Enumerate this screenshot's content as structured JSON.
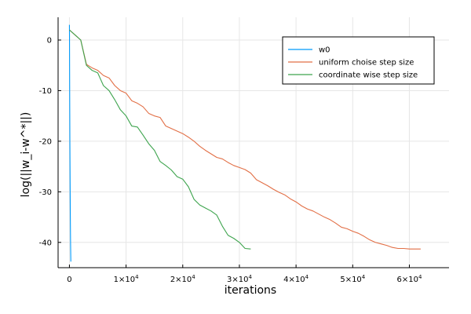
{
  "chart_data": {
    "type": "line",
    "title": "",
    "xlabel": "iterations",
    "ylabel": "log(||w_i-w^*||)",
    "xlim": [
      -2000,
      67000
    ],
    "ylim": [
      -45,
      4.5
    ],
    "grid": true,
    "legend_position": "top-right",
    "x_ticks": [
      {
        "value": 0,
        "base": "0",
        "exp": ""
      },
      {
        "value": 10000,
        "base": "1×10",
        "exp": "4"
      },
      {
        "value": 20000,
        "base": "2×10",
        "exp": "4"
      },
      {
        "value": 30000,
        "base": "3×10",
        "exp": "4"
      },
      {
        "value": 40000,
        "base": "4×10",
        "exp": "4"
      },
      {
        "value": 50000,
        "base": "5×10",
        "exp": "4"
      },
      {
        "value": 60000,
        "base": "6×10",
        "exp": "4"
      }
    ],
    "y_ticks": [
      {
        "value": 0,
        "label": "0"
      },
      {
        "value": -10,
        "label": "-10"
      },
      {
        "value": -20,
        "label": "-20"
      },
      {
        "value": -30,
        "label": "-30"
      },
      {
        "value": -40,
        "label": "-40"
      }
    ],
    "series": [
      {
        "name": "w0",
        "color": "#009AFA",
        "points": [
          [
            0,
            3.0
          ],
          [
            15,
            1.0
          ],
          [
            30,
            -5.0
          ],
          [
            50,
            -12.0
          ],
          [
            80,
            -20.0
          ],
          [
            120,
            -28.0
          ],
          [
            160,
            -35.0
          ],
          [
            200,
            -40.0
          ],
          [
            250,
            -43.8
          ]
        ]
      },
      {
        "name": "uniform choise step size",
        "color": "#E26F46",
        "points": [
          [
            0,
            2.0
          ],
          [
            1000,
            1.0
          ],
          [
            2000,
            0.0
          ],
          [
            3000,
            -4.8
          ],
          [
            4000,
            -5.5
          ],
          [
            5000,
            -6.0
          ],
          [
            6000,
            -7.0
          ],
          [
            7000,
            -7.5
          ],
          [
            8000,
            -9.0
          ],
          [
            9000,
            -10.0
          ],
          [
            10000,
            -10.5
          ],
          [
            11000,
            -12.0
          ],
          [
            12000,
            -12.5
          ],
          [
            13000,
            -13.2
          ],
          [
            14000,
            -14.5
          ],
          [
            15000,
            -15.0
          ],
          [
            16000,
            -15.3
          ],
          [
            17000,
            -17.0
          ],
          [
            18000,
            -17.5
          ],
          [
            19000,
            -18.0
          ],
          [
            20000,
            -18.5
          ],
          [
            21000,
            -19.2
          ],
          [
            22000,
            -20.0
          ],
          [
            23000,
            -21.0
          ],
          [
            24000,
            -21.8
          ],
          [
            25000,
            -22.5
          ],
          [
            26000,
            -23.2
          ],
          [
            27000,
            -23.5
          ],
          [
            28000,
            -24.2
          ],
          [
            29000,
            -24.8
          ],
          [
            30000,
            -25.2
          ],
          [
            31000,
            -25.6
          ],
          [
            32000,
            -26.3
          ],
          [
            33000,
            -27.6
          ],
          [
            34000,
            -28.2
          ],
          [
            35000,
            -28.8
          ],
          [
            36000,
            -29.5
          ],
          [
            37000,
            -30.1
          ],
          [
            38000,
            -30.6
          ],
          [
            39000,
            -31.4
          ],
          [
            40000,
            -32.0
          ],
          [
            41000,
            -32.8
          ],
          [
            42000,
            -33.4
          ],
          [
            43000,
            -33.8
          ],
          [
            44000,
            -34.4
          ],
          [
            45000,
            -35.0
          ],
          [
            46000,
            -35.5
          ],
          [
            47000,
            -36.2
          ],
          [
            48000,
            -37.0
          ],
          [
            49000,
            -37.3
          ],
          [
            50000,
            -37.8
          ],
          [
            51000,
            -38.2
          ],
          [
            52000,
            -38.8
          ],
          [
            53000,
            -39.5
          ],
          [
            54000,
            -40.0
          ],
          [
            55000,
            -40.3
          ],
          [
            56000,
            -40.6
          ],
          [
            57000,
            -41.0
          ],
          [
            58000,
            -41.2
          ],
          [
            59000,
            -41.2
          ],
          [
            60000,
            -41.3
          ],
          [
            61000,
            -41.3
          ],
          [
            62000,
            -41.3
          ]
        ]
      },
      {
        "name": "coordinate wise step size",
        "color": "#3EA44E",
        "points": [
          [
            0,
            2.0
          ],
          [
            1000,
            1.0
          ],
          [
            2000,
            0.0
          ],
          [
            3000,
            -5.0
          ],
          [
            4000,
            -6.0
          ],
          [
            5000,
            -6.5
          ],
          [
            6000,
            -9.0
          ],
          [
            7000,
            -10.0
          ],
          [
            8000,
            -11.8
          ],
          [
            9000,
            -13.8
          ],
          [
            10000,
            -15.0
          ],
          [
            11000,
            -17.0
          ],
          [
            12000,
            -17.2
          ],
          [
            13000,
            -18.8
          ],
          [
            14000,
            -20.5
          ],
          [
            15000,
            -21.8
          ],
          [
            16000,
            -24.0
          ],
          [
            17000,
            -24.8
          ],
          [
            18000,
            -25.7
          ],
          [
            19000,
            -27.0
          ],
          [
            20000,
            -27.5
          ],
          [
            21000,
            -29.0
          ],
          [
            22000,
            -31.5
          ],
          [
            23000,
            -32.6
          ],
          [
            24000,
            -33.2
          ],
          [
            25000,
            -33.8
          ],
          [
            26000,
            -34.6
          ],
          [
            27000,
            -36.8
          ],
          [
            28000,
            -38.6
          ],
          [
            29000,
            -39.2
          ],
          [
            30000,
            -40.0
          ],
          [
            31000,
            -41.2
          ],
          [
            32000,
            -41.3
          ]
        ]
      }
    ]
  }
}
